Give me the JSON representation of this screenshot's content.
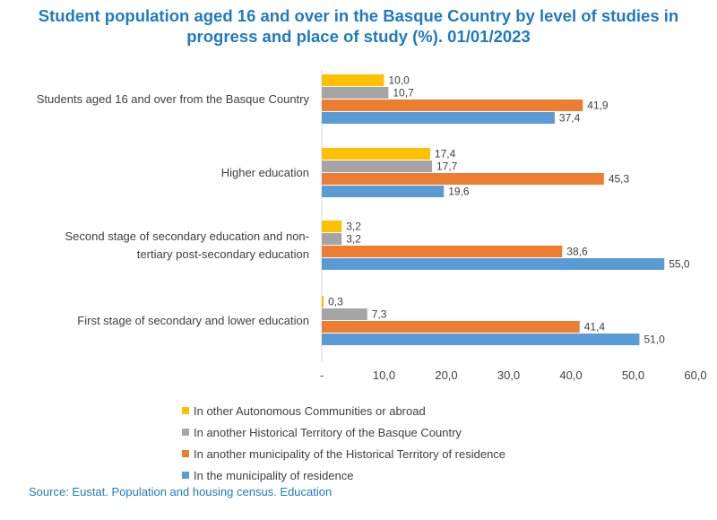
{
  "title_line1": "Student population aged 16 and over in the Basque Country by level of studies in",
  "title_line2": "progress and place of study (%). 01/01/2023",
  "source": "Source: Eustat. Population and housing census. Education",
  "chart_data": {
    "type": "bar",
    "orientation": "horizontal",
    "title": "Student population aged 16 and over in the Basque Country by level of studies in progress and place of study (%). 01/01/2023",
    "categories": [
      [
        "Students aged 16 and over from the Basque Country"
      ],
      [
        "Higher education"
      ],
      [
        "Second stage of secondary education and non-",
        "tertiary post-secondary education"
      ],
      [
        "First stage of secondary and lower education"
      ]
    ],
    "series": [
      {
        "name": "In other Autonomous Communities or abroad",
        "color": "#ffc000",
        "values": [
          10.0,
          17.4,
          3.2,
          0.3
        ]
      },
      {
        "name": "In another Historical Territory of the Basque Country",
        "color": "#a5a5a5",
        "values": [
          10.7,
          17.7,
          3.2,
          7.3
        ]
      },
      {
        "name": "In another municipality of the Historical Territory of residence",
        "color": "#ed7d31",
        "values": [
          41.9,
          45.3,
          38.6,
          41.4
        ]
      },
      {
        "name": "In the municipality of residence",
        "color": "#5b9bd5",
        "values": [
          37.4,
          19.6,
          55.0,
          51.0
        ]
      }
    ],
    "xlim": [
      0,
      60
    ],
    "xticks": [
      0,
      10,
      20,
      30,
      40,
      50,
      60
    ],
    "xtick_labels": [
      "-",
      "10,0",
      "20,0",
      "30,0",
      "40,0",
      "50,0",
      "60,0"
    ],
    "legend_position": "bottom",
    "grid": false
  }
}
